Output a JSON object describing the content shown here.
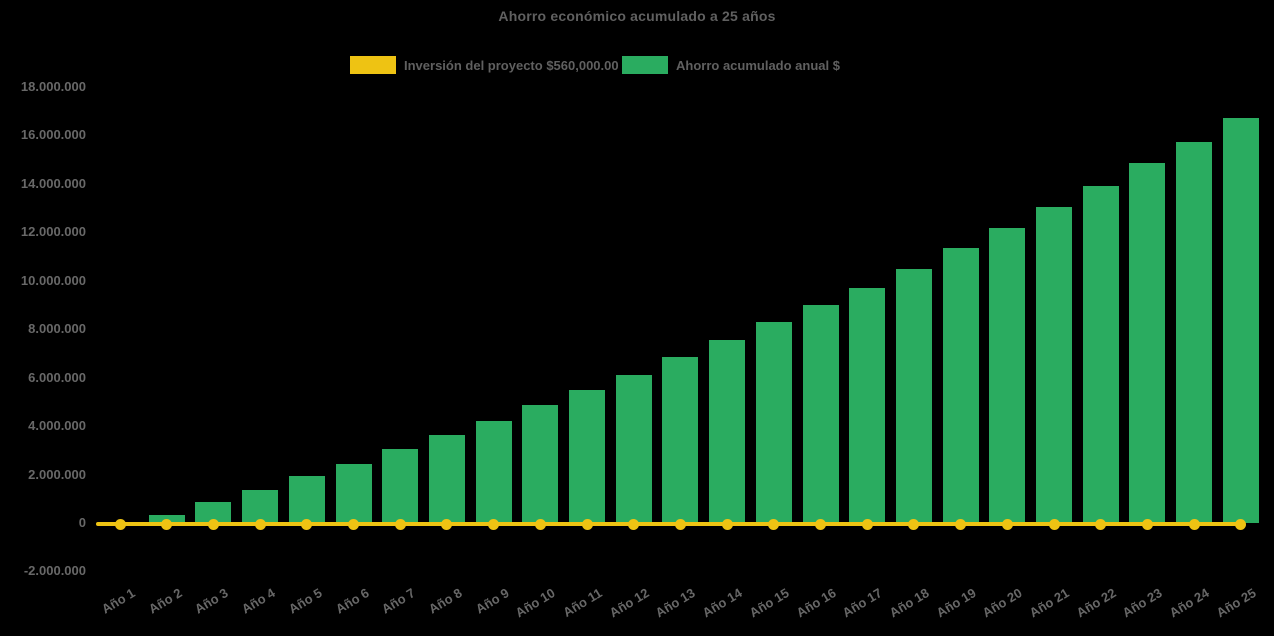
{
  "chart": {
    "title": "Ahorro económico acumulado a 25 años",
    "colors": {
      "background": "#000000",
      "bar": "#2AAC60",
      "line": "#EEC313",
      "text": "#686868",
      "title_text": "#606060"
    },
    "legend": [
      {
        "label": "Inversión del proyecto $560,000.00",
        "color": "#EEC313"
      },
      {
        "label": "Ahorro acumulado anual $",
        "color": "#2AAC60"
      }
    ]
  },
  "chart_data": {
    "type": "bar",
    "title": "Ahorro económico acumulado a 25 años",
    "legend_position": "top",
    "grid": false,
    "background": "#000000",
    "categories": [
      "Año 1",
      "Año 2",
      "Año 3",
      "Año 4",
      "Año 5",
      "Año 6",
      "Año 7",
      "Año 8",
      "Año 9",
      "Año 10",
      "Año 11",
      "Año 12",
      "Año 13",
      "Año 14",
      "Año 15",
      "Año 16",
      "Año 17",
      "Año 18",
      "Año 19",
      "Año 20",
      "Año 21",
      "Año 22",
      "Año 23",
      "Año 24",
      "Año 25"
    ],
    "series": [
      {
        "name": "Ahorro acumulado anual $",
        "type": "bar",
        "color": "#2AAC60",
        "values": [
          50000,
          350000,
          870000,
          1380000,
          1930000,
          2450000,
          3050000,
          3630000,
          4200000,
          4880000,
          5480000,
          6130000,
          6850000,
          7550000,
          8280000,
          9000000,
          9700000,
          10500000,
          11350000,
          12180000,
          13050000,
          13900000,
          14850000,
          15750000,
          16720000
        ]
      },
      {
        "name": "Inversión del proyecto $560,000.00",
        "type": "line",
        "marker": "circle",
        "color": "#EEC313",
        "values": [
          0,
          0,
          0,
          0,
          0,
          0,
          0,
          0,
          0,
          0,
          0,
          0,
          0,
          0,
          0,
          0,
          0,
          0,
          0,
          0,
          0,
          0,
          0,
          0,
          0
        ]
      }
    ],
    "ylim": [
      -2000000,
      18000000
    ],
    "ytick_step": 2000000,
    "ytick_labels": [
      "18.000.000",
      "16.000.000",
      "14.000.000",
      "12.000.000",
      "10.000.000",
      "8.000.000",
      "6.000.000",
      "4.000.000",
      "2.000.000",
      "0",
      "-2.000.000"
    ],
    "ytick_values": [
      18000000,
      16000000,
      14000000,
      12000000,
      10000000,
      8000000,
      6000000,
      4000000,
      2000000,
      0,
      -2000000
    ]
  }
}
